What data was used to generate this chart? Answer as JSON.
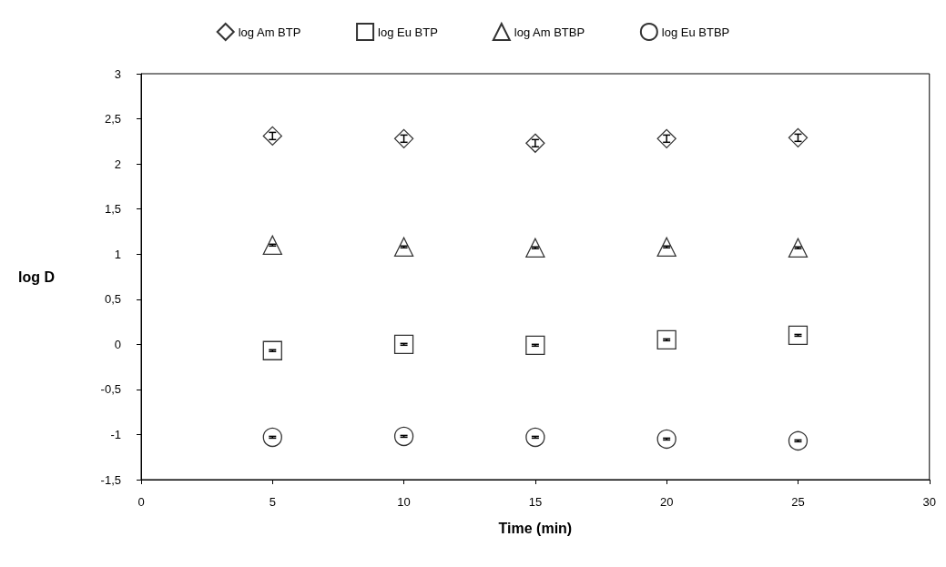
{
  "chart_data": {
    "type": "scatter",
    "xlabel": "Time (min)",
    "ylabel": "log D",
    "x": [
      5,
      10,
      15,
      20,
      25
    ],
    "xlim": [
      0,
      30
    ],
    "xticks": [
      0,
      5,
      10,
      15,
      20,
      25,
      30
    ],
    "ylim": [
      -1.5,
      3
    ],
    "yticks": [
      {
        "value": -1.5,
        "label": "-1,5"
      },
      -1,
      {
        "value": -0.5,
        "label": "-0,5"
      },
      0,
      {
        "value": 0.5,
        "label": "0,5"
      },
      1,
      {
        "value": 1.5,
        "label": "1,5"
      },
      2,
      {
        "value": 2.5,
        "label": "2,5"
      },
      3
    ],
    "grid": false,
    "legend": "top",
    "series": [
      {
        "name": "log Am BTP",
        "color": "#000000",
        "marker": "diamond",
        "values": [
          2.31,
          2.28,
          2.23,
          2.28,
          2.29
        ],
        "errors": [
          0.04,
          0.04,
          0.04,
          0.04,
          0.04
        ]
      },
      {
        "name": "log Eu BTP",
        "color": "#000000",
        "marker": "square",
        "values": [
          -0.07,
          0.0,
          -0.01,
          0.05,
          0.1
        ],
        "errors": [
          0.01,
          0.01,
          0.01,
          0.01,
          0.01
        ]
      },
      {
        "name": "log Am BTBP",
        "color": "#000000",
        "marker": "triangle",
        "values": [
          1.1,
          1.08,
          1.07,
          1.08,
          1.07
        ],
        "errors": [
          0.01,
          0.01,
          0.01,
          0.01,
          0.01
        ]
      },
      {
        "name": "log Eu BTBP",
        "color": "#000000",
        "marker": "circle",
        "values": [
          -1.03,
          -1.02,
          -1.03,
          -1.05,
          -1.07
        ],
        "errors": [
          0.01,
          0.01,
          0.01,
          0.01,
          0.01
        ]
      }
    ]
  }
}
